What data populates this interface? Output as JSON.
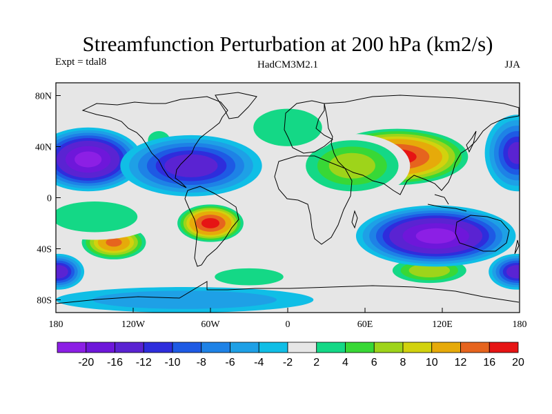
{
  "header": {
    "title": "Streamfunction Perturbation at 200 hPa (km2/s)",
    "left": "Expt = tdal8",
    "center": "HadCM3M2.1",
    "right": "JJA"
  },
  "map": {
    "background_color": "#e6e6e6",
    "lon_range": [
      -180,
      180
    ],
    "lat_range": [
      -90,
      90
    ],
    "y_ticks": [
      {
        "lat": 80,
        "label": "80N"
      },
      {
        "lat": 40,
        "label": "40N"
      },
      {
        "lat": 0,
        "label": "0"
      },
      {
        "lat": -40,
        "label": "40S"
      },
      {
        "lat": -80,
        "label": "80S"
      }
    ],
    "x_ticks": [
      {
        "lon": -180,
        "label": "180"
      },
      {
        "lon": -120,
        "label": "120W"
      },
      {
        "lon": -60,
        "label": "60W"
      },
      {
        "lon": 0,
        "label": "0"
      },
      {
        "lon": 60,
        "label": "60E"
      },
      {
        "lon": 120,
        "label": "120E"
      },
      {
        "lon": 180,
        "label": "180"
      }
    ],
    "anomalies": [
      {
        "lon": 85,
        "lat": 32,
        "rlon": 60,
        "rlat": 24,
        "value": 22
      },
      {
        "lon": 50,
        "lat": 25,
        "rlon": 45,
        "rlat": 25,
        "value": 8
      },
      {
        "lon": 0,
        "lat": 55,
        "rlon": 40,
        "rlat": 22,
        "value": 4
      },
      {
        "lon": -60,
        "lat": -20,
        "rlon": 28,
        "rlat": 16,
        "value": 22
      },
      {
        "lon": -135,
        "lat": -35,
        "rlon": 28,
        "rlat": 15,
        "value": 16
      },
      {
        "lon": -150,
        "lat": -15,
        "rlon": 50,
        "rlat": 18,
        "value": 4
      },
      {
        "lon": -100,
        "lat": 45,
        "rlon": 12,
        "rlat": 10,
        "value": 5
      },
      {
        "lon": 110,
        "lat": -57,
        "rlon": 35,
        "rlat": 12,
        "value": 9
      },
      {
        "lon": -30,
        "lat": -62,
        "rlon": 40,
        "rlat": 10,
        "value": 4
      },
      {
        "lon": 0,
        "lat": -15,
        "rlon": 25,
        "rlat": 22,
        "value": 0
      },
      {
        "lon": -155,
        "lat": 30,
        "rlon": 42,
        "rlat": 25,
        "value": -22
      },
      {
        "lon": -75,
        "lat": 25,
        "rlon": 55,
        "rlat": 24,
        "value": -14
      },
      {
        "lon": 115,
        "lat": -30,
        "rlon": 62,
        "rlat": 24,
        "value": -22
      },
      {
        "lon": 178,
        "lat": 35,
        "rlon": 25,
        "rlat": 30,
        "value": -12
      },
      {
        "lon": 178,
        "lat": -58,
        "rlon": 22,
        "rlat": 14,
        "value": -14
      },
      {
        "lon": -178,
        "lat": -58,
        "rlon": 20,
        "rlat": 14,
        "value": -14
      },
      {
        "lon": -80,
        "lat": -80,
        "rlon": 100,
        "rlat": 10,
        "value": -5
      }
    ]
  },
  "colorbar": {
    "colors": [
      "#8c1fe5",
      "#6e17da",
      "#5a23d2",
      "#2e2ddc",
      "#1e5ae4",
      "#1e82e6",
      "#1ea0e6",
      "#10bee6",
      "#e6e6e6",
      "#14d886",
      "#38d836",
      "#9ed41a",
      "#d2d20e",
      "#e6aa0a",
      "#e6641e",
      "#e61414"
    ],
    "labels": [
      "-20",
      "-16",
      "-12",
      "-10",
      "-8",
      "-6",
      "-4",
      "-2",
      "2",
      "4",
      "6",
      "8",
      "10",
      "12",
      "16",
      "20"
    ],
    "levels": [
      -20,
      -16,
      -12,
      -10,
      -8,
      -6,
      -4,
      -2,
      2,
      4,
      6,
      8,
      10,
      12,
      16,
      20
    ]
  }
}
